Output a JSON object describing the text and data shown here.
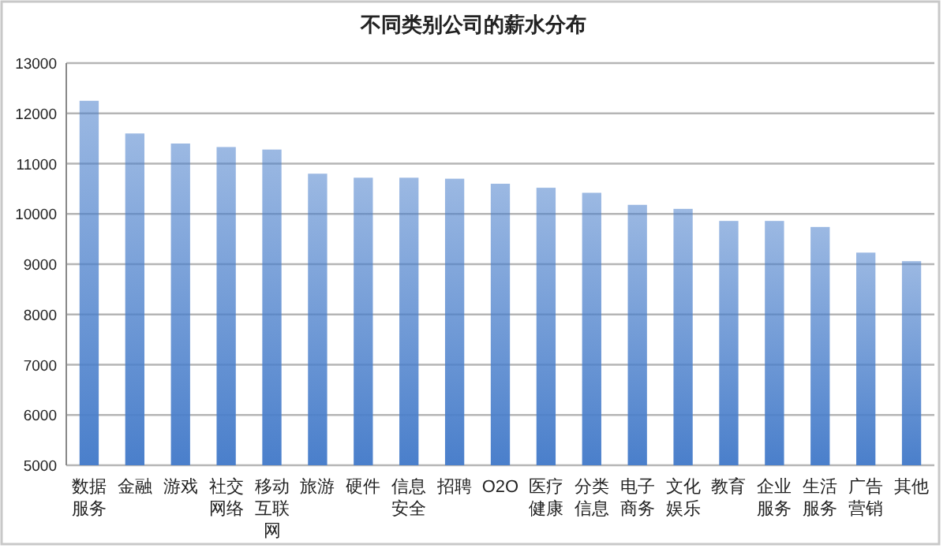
{
  "chart_data": {
    "type": "bar",
    "title": "不同类别公司的薪水分布",
    "categories": [
      "数据服务",
      "金融",
      "游戏",
      "社交网络",
      "移动互联网",
      "旅游",
      "硬件",
      "信息安全",
      "招聘",
      "O2O",
      "医疗健康",
      "分类信息",
      "电子商务",
      "文化娱乐",
      "教育",
      "企业服务",
      "生活服务",
      "广告营销",
      "其他"
    ],
    "values": [
      12250,
      11600,
      11400,
      11330,
      11280,
      10800,
      10720,
      10720,
      10700,
      10600,
      10520,
      10420,
      10180,
      10100,
      9860,
      9860,
      9740,
      9230,
      9060
    ],
    "color": "#4a7fcb",
    "ylim": [
      5000,
      13000
    ],
    "yticks": [
      5000,
      6000,
      7000,
      8000,
      9000,
      10000,
      11000,
      12000,
      13000
    ],
    "grid": "y"
  }
}
